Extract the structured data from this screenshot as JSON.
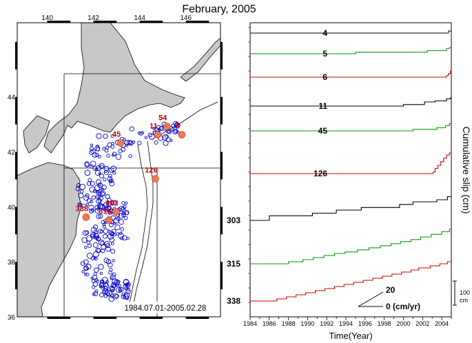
{
  "title": "February, 2005",
  "map": {
    "lon_ticks": [
      "140",
      "142",
      "144",
      "146"
    ],
    "lat_ticks": [
      "36",
      "38",
      "40",
      "42",
      "44"
    ],
    "date_range": "1984.07.01-2005.02.28",
    "sequence_labels": [
      {
        "text": "45",
        "lon": 143.0,
        "lat": 42.55
      },
      {
        "text": "54",
        "lon": 145.0,
        "lat": 43.15
      },
      {
        "text": "11",
        "lon": 144.6,
        "lat": 42.85
      },
      {
        "text": "6",
        "lon": 145.65,
        "lat": 42.85
      },
      {
        "text": "126",
        "lon": 144.5,
        "lat": 41.25
      },
      {
        "text": "338",
        "lon": 141.5,
        "lat": 39.85
      },
      {
        "text": "303",
        "lon": 142.8,
        "lat": 40.05
      },
      {
        "text": "315",
        "lon": 142.5,
        "lat": 39.75
      }
    ],
    "land_color": "#c8c8c8",
    "event_color": "#0000cc",
    "sequence_color": "#f07850"
  },
  "chart_data": {
    "type": "line",
    "title": "February, 2005",
    "xlabel": "Time(Year)",
    "ylabel": "Cumulative slip (cm)",
    "xlim": [
      1984,
      2005
    ],
    "x_ticks": [
      "1984",
      "1986",
      "1988",
      "1990",
      "1992",
      "1994",
      "1996",
      "1998",
      "2000",
      "2002",
      "2004"
    ],
    "scale_bar_label": "100 cm",
    "rate_legend": {
      "labels": [
        "20",
        "0 (cm/yr)"
      ]
    },
    "series": [
      {
        "name": "4",
        "color": "#000000",
        "label_side": "inner",
        "base": 0,
        "steps": [
          [
            1984.0,
            0
          ],
          [
            2004.7,
            4
          ]
        ]
      },
      {
        "name": "5",
        "color": "#009900",
        "label_side": "inner",
        "base": 0,
        "steps": [
          [
            1984.0,
            0
          ],
          [
            1995.0,
            3
          ],
          [
            1999.3,
            3
          ],
          [
            2002.5,
            6
          ],
          [
            2004.5,
            10
          ],
          [
            2004.8,
            12
          ]
        ]
      },
      {
        "name": "6",
        "color": "#cc0000",
        "label_side": "inner",
        "base": 0,
        "steps": [
          [
            1984.0,
            0
          ],
          [
            2004.5,
            3
          ],
          [
            2004.7,
            7
          ],
          [
            2004.9,
            12
          ]
        ]
      },
      {
        "name": "11",
        "color": "#000000",
        "label_side": "inner",
        "base": 0,
        "steps": [
          [
            1984.0,
            0
          ],
          [
            2000.0,
            3
          ],
          [
            2002.2,
            8
          ],
          [
            2003.3,
            10
          ],
          [
            2004.5,
            14
          ],
          [
            2004.9,
            16
          ]
        ]
      },
      {
        "name": "45",
        "color": "#009900",
        "label_side": "inner",
        "base": 0,
        "steps": [
          [
            1984.0,
            0
          ],
          [
            2001.0,
            3
          ],
          [
            2003.5,
            6
          ],
          [
            2004.4,
            10
          ],
          [
            2004.8,
            14
          ]
        ]
      },
      {
        "name": "126",
        "color": "#cc0000",
        "label_side": "inner",
        "base": 0,
        "steps": [
          [
            1984.0,
            0
          ],
          [
            2003.1,
            3
          ],
          [
            2003.3,
            10
          ],
          [
            2003.6,
            16
          ],
          [
            2003.9,
            23
          ],
          [
            2004.2,
            30
          ],
          [
            2004.5,
            36
          ],
          [
            2004.8,
            40
          ]
        ]
      },
      {
        "name": "303",
        "color": "#000000",
        "label_side": "outer",
        "base": 0,
        "steps": [
          [
            1984.0,
            0
          ],
          [
            1986.0,
            9
          ],
          [
            1990.5,
            14
          ],
          [
            1993.0,
            20
          ],
          [
            1995.6,
            25
          ],
          [
            1999.6,
            31
          ],
          [
            2001.0,
            36
          ],
          [
            2003.5,
            40
          ],
          [
            2004.6,
            46
          ]
        ]
      },
      {
        "name": "315",
        "color": "#009900",
        "label_side": "outer",
        "base": 0,
        "steps": [
          [
            1984.0,
            0
          ],
          [
            1988.0,
            4
          ],
          [
            1989.5,
            8
          ],
          [
            1990.6,
            12
          ],
          [
            1991.7,
            16
          ],
          [
            1992.8,
            20
          ],
          [
            1993.9,
            23
          ],
          [
            1995.2,
            27
          ],
          [
            1996.4,
            31
          ],
          [
            1997.6,
            35
          ],
          [
            1998.7,
            39
          ],
          [
            1999.7,
            43
          ],
          [
            2000.8,
            47
          ],
          [
            2001.8,
            52
          ],
          [
            2002.9,
            57
          ],
          [
            2004.0,
            62
          ],
          [
            2004.8,
            67
          ]
        ]
      },
      {
        "name": "338",
        "color": "#cc0000",
        "label_side": "outer",
        "base": 0,
        "steps": [
          [
            1984.0,
            0
          ],
          [
            1986.8,
            4
          ],
          [
            1987.8,
            8
          ],
          [
            1988.8,
            12
          ],
          [
            1989.8,
            16
          ],
          [
            1990.8,
            20
          ],
          [
            1991.8,
            24
          ],
          [
            1992.8,
            28
          ],
          [
            1993.8,
            32
          ],
          [
            1994.8,
            36
          ],
          [
            1995.8,
            40
          ],
          [
            1996.8,
            44
          ],
          [
            1997.8,
            48
          ],
          [
            1998.8,
            52
          ],
          [
            1999.8,
            56
          ],
          [
            2000.8,
            60
          ],
          [
            2001.6,
            64
          ],
          [
            2002.8,
            68
          ],
          [
            2003.8,
            72
          ],
          [
            2004.6,
            76
          ]
        ]
      }
    ]
  }
}
